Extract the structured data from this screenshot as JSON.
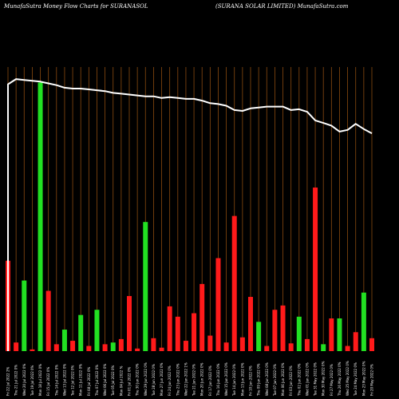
{
  "header": {
    "left": "MunafaSutra  Money Flow  Charts for SURANASOL",
    "right": "(SURANA SOLAR LIMITED) MunafaSutra.com"
  },
  "chart_data": {
    "type": "bar",
    "grid": "vertical lines",
    "colors": {
      "up": "#22e022",
      "down": "#ff1a1a",
      "price_line": "#ffffff",
      "grid": "#8a4a10",
      "background": "#000000"
    },
    "categories": [
      "Fri 22 Jul 2022 2%",
      "Thu 21 Jul 2022 0%",
      "Wed 20 Jul 2022 0%",
      "Tue 19 Jul 2022 0%",
      "Mon 18 Jul 2022 0%",
      "Fri 15 Jul 2022 0%",
      "Thu 14 Jul 2022 0%",
      "Wed 13 Jul 2022 0%",
      "Tue 12 Jul 2022 0%",
      "Mon 11 Jul 2022 0%",
      "Fri 08 Jul 2022 0%",
      "Thu 07 Jul 2022 0%",
      "Wed 06 Jul 2022 0%",
      "Tue 05 Jul 2022 0%",
      "Mon 04 Jul 2022 %",
      "Fri 01 Jul 2022 0%",
      "Thu 30 Jun 2022 0%",
      "Wed 29 Jun 2022 0%",
      "Tue 28 Jun 2022 0%",
      "Mon 27 Jun 2022 0%",
      "Fri 24 Jun 2022 0%",
      "Thu 23 Jun 2022 0%",
      "Wed 22 Jun 2022 1%",
      "Tue 21 Jun 2022 0%",
      "Mon 20 Jun 2022 0%",
      "Fri 17 Jun 2022 0%",
      "Thu 16 Jun 2022 0%",
      "Wed 15 Jun 2022 0%",
      "Tue 14 Jun 2022 0%",
      "Mon 13 Jun 2022 0%",
      "Fri 10 Jun 2022 0%",
      "Thu 09 Jun 2022 0%",
      "Wed 08 Jun 2022 0%",
      "Tue 07 Jun 2022 0%",
      "Mon 06 Jun 2022 0%",
      "Fri 03 Jun 2022 0%",
      "Thu 02 Jun 2022 0%",
      "Wed 01 Jun 2022 0%",
      "Tue 31 May 2022 0%",
      "Mon 30 May 2022 0%",
      "Fri 27 May 2022 0%",
      "Thu 26 May 2022 0%",
      "Wed 25 May 2022 0%",
      "Tue 24 May 2022 0%",
      "Mon 23 May 2022 0%",
      "Fri 20 May 2022 0%"
    ],
    "bar_values": [
      105,
      10,
      82,
      2,
      312,
      70,
      8,
      25,
      12,
      42,
      6,
      48,
      8,
      10,
      14,
      64,
      3,
      150,
      15,
      4,
      52,
      40,
      12,
      44,
      78,
      18,
      108,
      10,
      157,
      16,
      63,
      34,
      6,
      48,
      53,
      9,
      40,
      14,
      190,
      8,
      38,
      38,
      6,
      22,
      68,
      15
    ],
    "bar_colors": [
      "down",
      "down",
      "up",
      "down",
      "up",
      "down",
      "down",
      "up",
      "down",
      "up",
      "down",
      "up",
      "down",
      "up",
      "down",
      "down",
      "down",
      "up",
      "down",
      "down",
      "down",
      "down",
      "down",
      "down",
      "down",
      "down",
      "down",
      "down",
      "down",
      "down",
      "down",
      "up",
      "down",
      "down",
      "down",
      "down",
      "up",
      "down",
      "down",
      "up",
      "down",
      "up",
      "down",
      "down",
      "up",
      "down"
    ],
    "price_line": [
      100,
      101,
      102,
      101,
      101,
      100,
      100,
      99,
      99,
      98,
      98,
      97,
      97,
      97,
      96,
      96,
      96,
      96,
      95,
      95,
      95,
      95,
      94,
      94,
      93,
      93,
      92,
      92,
      91,
      91,
      90,
      89,
      88,
      89,
      89,
      88,
      88,
      87,
      86,
      85,
      84,
      83,
      82,
      81,
      80,
      79
    ],
    "price_display": [
      310,
      316,
      315,
      314,
      313,
      311,
      309,
      306,
      305,
      305,
      304,
      303,
      302,
      300,
      299,
      298,
      297,
      296,
      296,
      294,
      295,
      294,
      293,
      293,
      291,
      288,
      287,
      285,
      280,
      279,
      282,
      283,
      284,
      284,
      284,
      280,
      281,
      278,
      268,
      265,
      262,
      255,
      257,
      264,
      258,
      253
    ],
    "ylim": [
      0,
      330
    ]
  }
}
